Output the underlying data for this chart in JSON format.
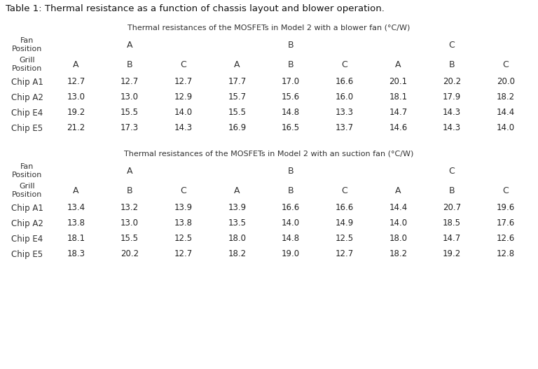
{
  "title": "Table 1: Thermal resistance as a function of chassis layout and blower operation.",
  "table1_title": "Thermal resistances of the MOSFETs in Model 2 with a blower fan (°C/W)",
  "table2_title": "Thermal resistances of the MOSFETs in Model 2 with an suction fan (°C/W)",
  "fan_positions": [
    "A",
    "B",
    "C"
  ],
  "grill_positions": [
    "A",
    "B",
    "C"
  ],
  "chip_labels": [
    "Chip A1",
    "Chip A2",
    "Chip E4",
    "Chip E5"
  ],
  "table1_data": [
    [
      "12.7",
      "12.7",
      "12.7",
      "17.7",
      "17.0",
      "16.6",
      "20.1",
      "20.2",
      "20.0"
    ],
    [
      "13.0",
      "13.0",
      "12.9",
      "15.7",
      "15.6",
      "16.0",
      "18.1",
      "17.9",
      "18.2"
    ],
    [
      "19.2",
      "15.5",
      "14.0",
      "15.5",
      "14.8",
      "13.3",
      "14.7",
      "14.3",
      "14.4"
    ],
    [
      "21.2",
      "17.3",
      "14.3",
      "16.9",
      "16.5",
      "13.7",
      "14.6",
      "14.3",
      "14.0"
    ]
  ],
  "table2_data": [
    [
      "13.4",
      "13.2",
      "13.9",
      "13.9",
      "16.6",
      "16.6",
      "14.4",
      "20.7",
      "19.6"
    ],
    [
      "13.8",
      "13.0",
      "13.8",
      "13.5",
      "14.0",
      "14.9",
      "14.0",
      "18.5",
      "17.6"
    ],
    [
      "18.1",
      "15.5",
      "12.5",
      "18.0",
      "14.8",
      "12.5",
      "18.0",
      "14.7",
      "12.6"
    ],
    [
      "18.3",
      "20.2",
      "12.7",
      "18.2",
      "19.0",
      "12.7",
      "18.2",
      "19.2",
      "12.8"
    ]
  ],
  "table1_colors": [
    [
      "#57bb6e",
      "#57bb6e",
      "#57bb6e",
      "#f4a83a",
      "#f4a83a",
      "#f4a83a",
      "#f07b52",
      "#f07b52",
      "#f07b52"
    ],
    [
      "#57bb6e",
      "#57bb6e",
      "#57bb6e",
      "#f4c96a",
      "#f4c96a",
      "#f4a83a",
      "#f4c96a",
      "#f4a83a",
      "#f4c96a"
    ],
    [
      "#f07b52",
      "#f4a83a",
      "#f4c96a",
      "#f4a83a",
      "#f4c96a",
      "#57bb6e",
      "#f4c96a",
      "#f4c96a",
      "#f4c96a"
    ],
    [
      "#e84040",
      "#f4a83a",
      "#f4c96a",
      "#f4a83a",
      "#f4a83a",
      "#57bb6e",
      "#f4c96a",
      "#f4c96a",
      "#57bb6e"
    ]
  ],
  "table2_colors": [
    [
      "#57bb6e",
      "#57bb6e",
      "#57bb6e",
      "#57bb6e",
      "#f4a83a",
      "#f4a83a",
      "#57bb6e",
      "#e84040",
      "#f07b52"
    ],
    [
      "#57bb6e",
      "#57bb6e",
      "#57bb6e",
      "#57bb6e",
      "#57bb6e",
      "#f4c96a",
      "#57bb6e",
      "#f4c96a",
      "#f4a83a"
    ],
    [
      "#f4a83a",
      "#f4a83a",
      "#57bb6e",
      "#f4a83a",
      "#f4c96a",
      "#57bb6e",
      "#f4a83a",
      "#f4c96a",
      "#57bb6e"
    ],
    [
      "#f4a83a",
      "#e84040",
      "#57bb6e",
      "#f4a83a",
      "#f07b52",
      "#57bb6e",
      "#f4a83a",
      "#f07b52",
      "#57bb6e"
    ]
  ],
  "fig_width": 7.68,
  "fig_height": 5.27,
  "dpi": 100
}
